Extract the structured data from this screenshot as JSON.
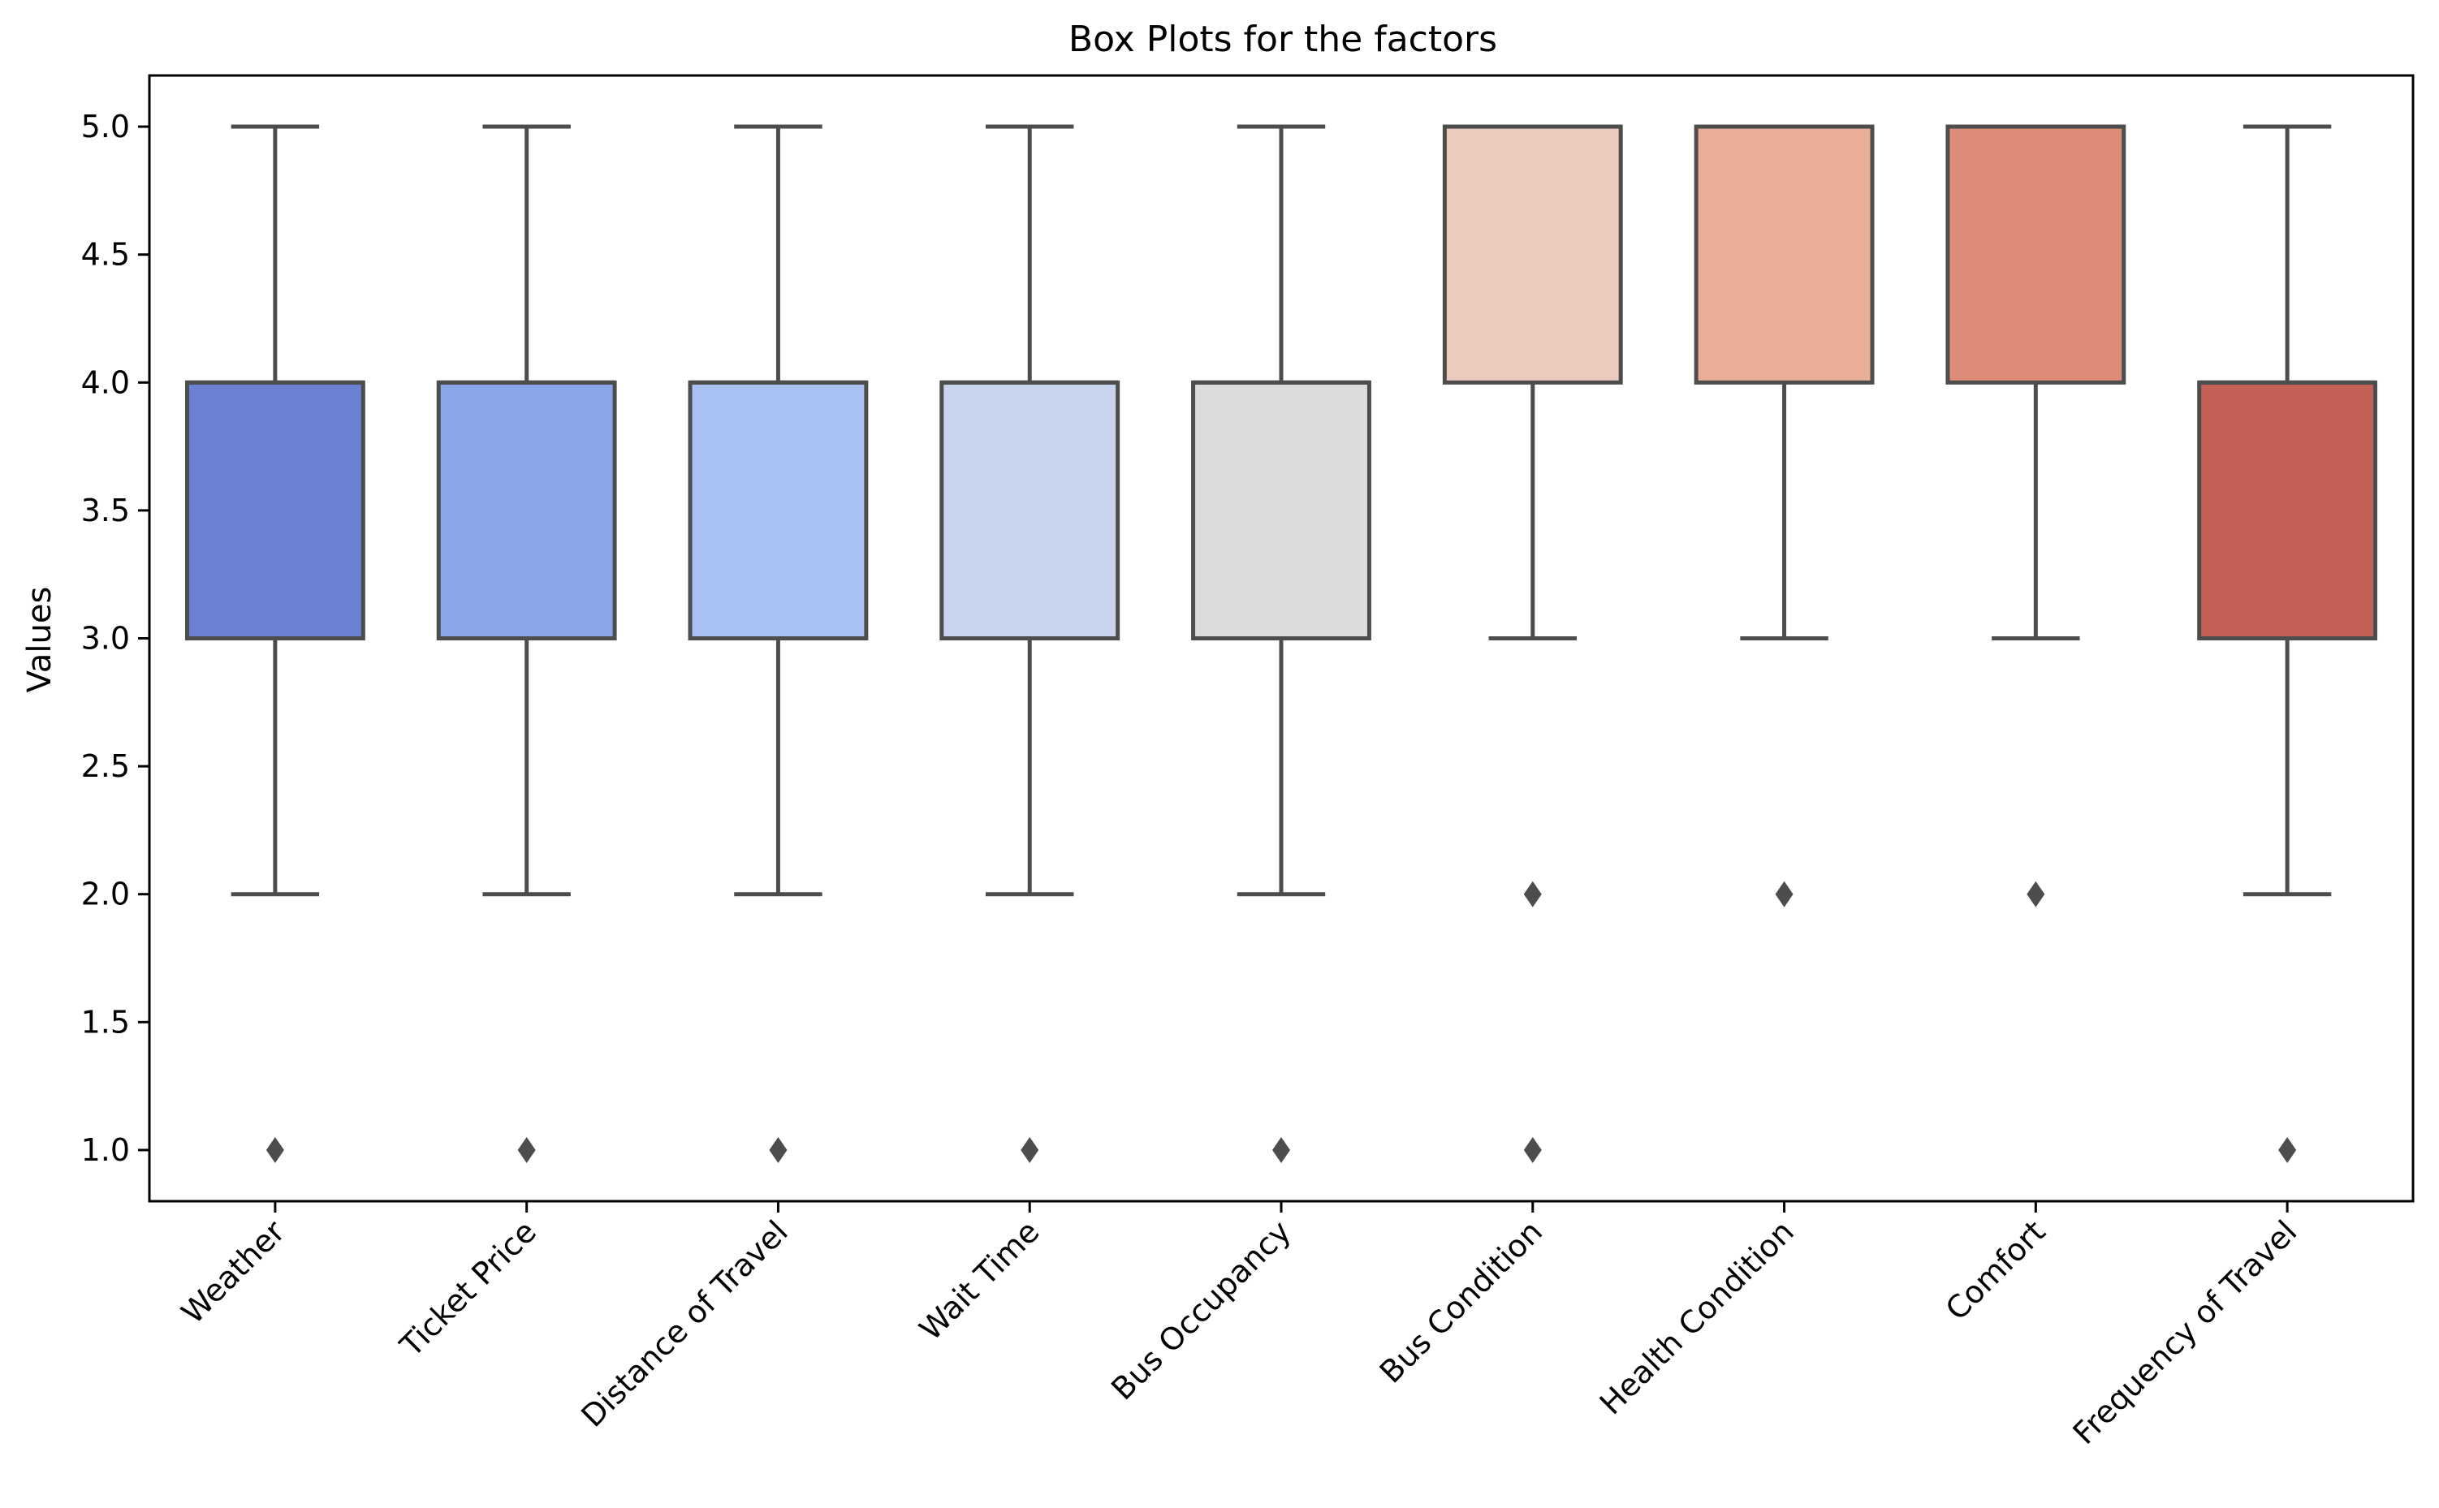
{
  "chart_data": {
    "type": "box",
    "title": "Box Plots for the factors",
    "xlabel": "",
    "ylabel": "Values",
    "ylim": [
      0.8,
      5.2
    ],
    "yticks": [
      "1.0",
      "1.5",
      "2.0",
      "2.5",
      "3.0",
      "3.5",
      "4.0",
      "4.5",
      "5.0"
    ],
    "grid": false,
    "legend": "none",
    "categories": [
      "Weather",
      "Ticket Price",
      "Distance of Travel",
      "Wait Time",
      "Bus Occupancy",
      "Bus Condition",
      "Health Condition",
      "Comfort",
      "Frequency of Travel"
    ],
    "boxes": [
      {
        "category": "Weather",
        "whisker_low": 2,
        "q1": 3,
        "median": 4,
        "q3": 4,
        "whisker_high": 5,
        "outliers": [
          1
        ],
        "color": "#6a81d3"
      },
      {
        "category": "Ticket Price",
        "whisker_low": 2,
        "q1": 3,
        "median": 4,
        "q3": 4,
        "whisker_high": 5,
        "outliers": [
          1
        ],
        "color": "#8aa6e8"
      },
      {
        "category": "Distance of Travel",
        "whisker_low": 2,
        "q1": 3,
        "median": 4,
        "q3": 4,
        "whisker_high": 5,
        "outliers": [
          1
        ],
        "color": "#aac1f3"
      },
      {
        "category": "Wait Time",
        "whisker_low": 2,
        "q1": 3,
        "median": 4,
        "q3": 4,
        "whisker_high": 5,
        "outliers": [
          1
        ],
        "color": "#c9d5ef"
      },
      {
        "category": "Bus Occupancy",
        "whisker_low": 2,
        "q1": 3,
        "median": 4,
        "q3": 4,
        "whisker_high": 5,
        "outliers": [
          1
        ],
        "color": "#dcdcdc"
      },
      {
        "category": "Bus Condition",
        "whisker_low": 3,
        "q1": 4,
        "median": 5,
        "q3": 5,
        "whisker_high": 5,
        "outliers": [
          2,
          1
        ],
        "color": "#eacbbd"
      },
      {
        "category": "Health Condition",
        "whisker_low": 3,
        "q1": 4,
        "median": 5,
        "q3": 5,
        "whisker_high": 5,
        "outliers": [
          2
        ],
        "color": "#e9af96"
      },
      {
        "category": "Comfort",
        "whisker_low": 3,
        "q1": 4,
        "median": 5,
        "q3": 5,
        "whisker_high": 5,
        "outliers": [
          2
        ],
        "color": "#dd8c77"
      },
      {
        "category": "Frequency of Travel",
        "whisker_low": 2,
        "q1": 3,
        "median": 4,
        "q3": 4,
        "whisker_high": 5,
        "outliers": [
          1
        ],
        "color": "#c46156"
      }
    ],
    "line_color": "#4d4d4d"
  }
}
